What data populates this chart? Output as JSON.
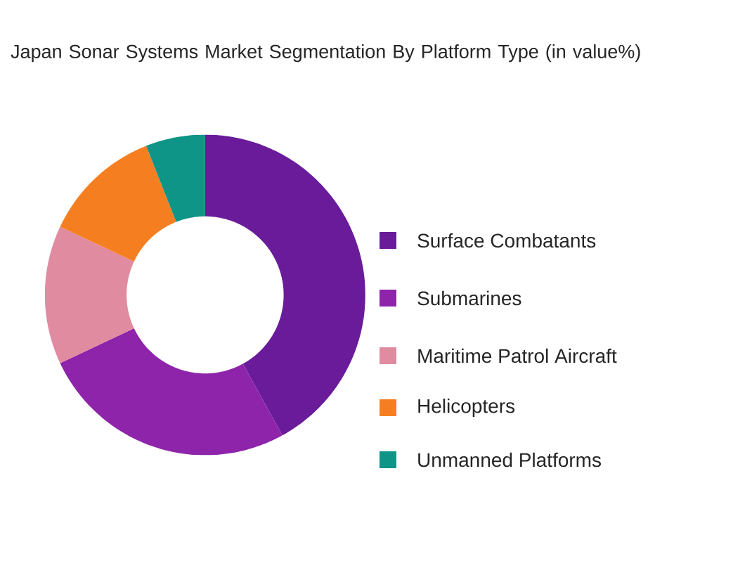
{
  "chart_data": {
    "type": "donut",
    "title": "Japan Sonar Systems Market Segmentation By Platform Type (in value%)",
    "categories": [
      "Surface Combatants",
      "Submarines",
      "Maritime Patrol Aircraft",
      "Helicopters",
      "Unmanned Platforms"
    ],
    "values": [
      42,
      26,
      14,
      12,
      6
    ],
    "colors": [
      "#6a1b9a",
      "#8e24aa",
      "#e08ba0",
      "#f57f20",
      "#0f9488"
    ],
    "legend": "right"
  }
}
